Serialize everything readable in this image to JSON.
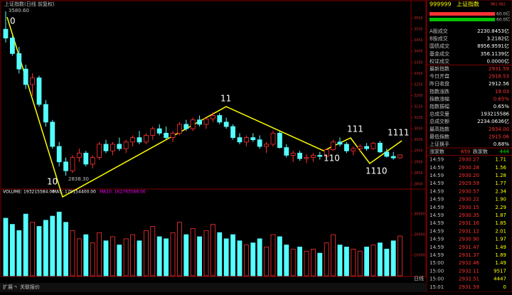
{
  "chart_data": {
    "type": "candlestick",
    "title": "上证指数(日线 前复权)",
    "high_label": "3580.60",
    "low_label": "2838.30",
    "period_label": "日线",
    "annotations": [
      "0",
      "10",
      "11",
      "110",
      "111",
      "1110",
      "1111"
    ],
    "ylim": [
      2790,
      3600
    ],
    "yticks": [
      2800,
      2850,
      2900,
      2950,
      3000,
      3050,
      3100,
      3150,
      3200,
      3250,
      3300,
      3350,
      3400,
      3450,
      3500,
      3550
    ],
    "candles": [
      [
        3500,
        3580.6,
        3440,
        3460
      ],
      [
        3460,
        3470,
        3380,
        3390
      ],
      [
        3390,
        3420,
        3300,
        3320
      ],
      [
        3320,
        3340,
        3230,
        3250
      ],
      [
        3250,
        3300,
        3200,
        3280
      ],
      [
        3280,
        3290,
        3150,
        3160
      ],
      [
        3160,
        3180,
        3060,
        3080
      ],
      [
        3080,
        3090,
        2960,
        2970
      ],
      [
        2970,
        2990,
        2880,
        2900
      ],
      [
        2900,
        2920,
        2838.3,
        2860
      ],
      [
        2860,
        2930,
        2850,
        2920
      ],
      [
        2920,
        2960,
        2900,
        2940
      ],
      [
        2940,
        2950,
        2880,
        2890
      ],
      [
        2890,
        2930,
        2870,
        2920
      ],
      [
        2920,
        2990,
        2910,
        2980
      ],
      [
        2980,
        3000,
        2940,
        2950
      ],
      [
        2950,
        2990,
        2930,
        2980
      ],
      [
        2980,
        3010,
        2950,
        2960
      ],
      [
        2960,
        3000,
        2940,
        2990
      ],
      [
        2990,
        3020,
        2970,
        3010
      ],
      [
        3010,
        3040,
        2980,
        2990
      ],
      [
        2990,
        3030,
        2980,
        3020
      ],
      [
        3020,
        3060,
        3000,
        3050
      ],
      [
        3050,
        3070,
        3020,
        3030
      ],
      [
        3030,
        3060,
        3000,
        3010
      ],
      [
        3010,
        3040,
        2990,
        3030
      ],
      [
        3030,
        3080,
        3020,
        3070
      ],
      [
        3070,
        3090,
        3040,
        3050
      ],
      [
        3050,
        3100,
        3040,
        3090
      ],
      [
        3090,
        3110,
        3060,
        3070
      ],
      [
        3070,
        3100,
        3050,
        3095
      ],
      [
        3095,
        3125,
        3080,
        3110
      ],
      [
        3110,
        3120,
        3070,
        3080
      ],
      [
        3080,
        3100,
        3050,
        3060
      ],
      [
        3060,
        3070,
        3000,
        3010
      ],
      [
        3010,
        3030,
        2980,
        2990
      ],
      [
        2990,
        3020,
        2970,
        3010
      ],
      [
        3010,
        3030,
        2990,
        3000
      ],
      [
        3000,
        3020,
        2960,
        2970
      ],
      [
        2970,
        2990,
        2940,
        2980
      ],
      [
        2980,
        3040,
        2970,
        3030
      ],
      [
        3030,
        3040,
        2960,
        2965
      ],
      [
        2965,
        2980,
        2920,
        2930
      ],
      [
        2930,
        2950,
        2900,
        2940
      ],
      [
        2940,
        2950,
        2905,
        2915
      ],
      [
        2915,
        2935,
        2895,
        2920
      ],
      [
        2920,
        2940,
        2900,
        2930
      ],
      [
        2930,
        2945,
        2910,
        2925
      ],
      [
        2925,
        2960,
        2915,
        2955
      ],
      [
        2955,
        3000,
        2950,
        2990
      ],
      [
        2990,
        3010,
        2970,
        2980
      ],
      [
        2980,
        2990,
        2940,
        2950
      ],
      [
        2950,
        2970,
        2930,
        2960
      ],
      [
        2960,
        2980,
        2945,
        2970
      ],
      [
        2970,
        2985,
        2950,
        2960
      ],
      [
        2960,
        2990,
        2955,
        2985
      ],
      [
        2985,
        2995,
        2940,
        2945
      ],
      [
        2945,
        2960,
        2920,
        2925
      ],
      [
        2925,
        2945,
        2910,
        2918
      ],
      [
        2918.53,
        2934,
        2915.06,
        2931.59
      ]
    ],
    "volume_header": [
      "VOLUME: 193215584.00",
      "MA5: 170154400.00",
      "MA10: 162763568.00"
    ],
    "vlim": [
      0,
      38000
    ],
    "vticks": [
      10000,
      20000,
      30000
    ],
    "volumes": [
      28000,
      25000,
      22000,
      30000,
      26000,
      24000,
      27000,
      29000,
      31000,
      26000,
      22000,
      18000,
      20000,
      16000,
      21000,
      17000,
      19000,
      15000,
      18000,
      20000,
      17000,
      22000,
      24000,
      19000,
      18000,
      21000,
      26000,
      20000,
      23000,
      19000,
      22000,
      25000,
      21000,
      18000,
      20000,
      17000,
      15000,
      16000,
      18000,
      14000,
      20000,
      19000,
      15000,
      13000,
      14000,
      12000,
      13000,
      11000,
      16000,
      20000,
      15000,
      14000,
      13000,
      12000,
      14000,
      15000,
      16000,
      13000,
      17000,
      19322
    ],
    "up_color": "#ff3232",
    "down_color": "#54ffff"
  },
  "panel": {
    "code": "999999",
    "name": "上证指数",
    "extra": "961 X62",
    "bars": [
      "60.0亿",
      "60.0亿"
    ],
    "stats": [
      {
        "label": "A股成交",
        "value": "2230.8453亿",
        "color": "#ffffff"
      },
      {
        "label": "B股成交",
        "value": "3.2182亿",
        "color": "#ffffff"
      },
      {
        "label": "国债成交",
        "value": "8956.9591亿",
        "color": "#ffffff"
      },
      {
        "label": "基金成交",
        "value": "356.1139亿",
        "color": "#ffffff"
      },
      {
        "label": "权证成交",
        "value": "0.0000亿",
        "color": "#ffffff"
      },
      {
        "label": "最新指数",
        "value": "2931.59",
        "color": "#ff3232"
      },
      {
        "label": "今日开盘",
        "value": "2918.53",
        "color": "#ff3232"
      },
      {
        "label": "昨日收盘",
        "value": "2912.56",
        "color": "#ffffff"
      },
      {
        "label": "指数涨跌",
        "value": "19.03",
        "color": "#ff3232"
      },
      {
        "label": "指数涨幅",
        "value": "0.65%",
        "color": "#ff3232"
      },
      {
        "label": "指数振幅",
        "value": "0.65%",
        "color": "#ffffff"
      },
      {
        "label": "总成交量",
        "value": "193215586",
        "color": "#ffffff"
      },
      {
        "label": "总成交额",
        "value": "2234.0636亿",
        "color": "#ffffff"
      },
      {
        "label": "最高指数",
        "value": "2934.00",
        "color": "#ff3232"
      },
      {
        "label": "最低指数",
        "value": "2915.06",
        "color": "#ff3232"
      },
      {
        "label": "上证换手",
        "value": "0.68%",
        "color": "#ffffff"
      }
    ],
    "up_label": "涨家数",
    "up": "659",
    "down_label": "跌家数",
    "down": "444",
    "ticks": [
      [
        "14:59",
        "2930.27",
        "1.71"
      ],
      [
        "14:59",
        "2930.28",
        "1.56"
      ],
      [
        "14:59",
        "2930.20",
        "1.28"
      ],
      [
        "14:59",
        "2929.59",
        "1.77"
      ],
      [
        "14:59",
        "2930.57",
        "2.34"
      ],
      [
        "14:59",
        "2930.22",
        "1.90"
      ],
      [
        "14:59",
        "2930.15",
        "2.29"
      ],
      [
        "14:59",
        "2930.35",
        "1.87"
      ],
      [
        "14:59",
        "2931.16",
        "1.85"
      ],
      [
        "14:59",
        "2931.12",
        "2.01"
      ],
      [
        "14:59",
        "2930.90",
        "1.97"
      ],
      [
        "14:59",
        "2931.47",
        "1.49"
      ],
      [
        "14:59",
        "2931.37",
        "1.89"
      ],
      [
        "15:00",
        "2932.46",
        "1.49"
      ],
      [
        "15:00",
        "2932.11",
        "9517"
      ],
      [
        "15:00",
        "2932.51",
        "4447"
      ],
      [
        "15:01",
        "2931.59",
        "0"
      ]
    ]
  },
  "footer": {
    "tabs": [
      "扩展ㄱ",
      "关联报价"
    ]
  }
}
